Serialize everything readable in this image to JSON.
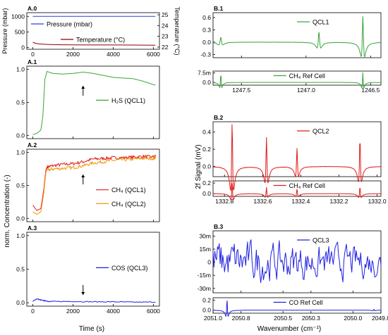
{
  "figure": {
    "left_ylabel": "norm. Concentration (-)",
    "left_xlabel": "Time (s)",
    "right_ylabel": "2f Signal (mV)",
    "right_xlabel": "Wavenumber (cm⁻¹)"
  },
  "chart_data": [
    {
      "id": "A0",
      "panel_label": "A.0",
      "type": "line",
      "ylabel_left": "Pressure (mbar)",
      "ylabel_right": "Temperature (°C)",
      "xlim": [
        -300,
        6300
      ],
      "ylim_left": [
        -60,
        1120
      ],
      "ylim_right": [
        21.8,
        25.2
      ],
      "xticks": [
        0,
        2000,
        4000,
        6000
      ],
      "xtick_labels": [
        "0",
        "2000",
        "4000",
        "6000"
      ],
      "yticks_left": [
        0,
        500,
        1000
      ],
      "ytick_labels_left": [
        "0",
        "500",
        "1000"
      ],
      "yticks_right": [
        22,
        23,
        24,
        25
      ],
      "ytick_labels_right": [
        "22",
        "23",
        "24",
        "25"
      ],
      "series": [
        {
          "name": "Pressure (mbar)",
          "axis": "left",
          "color": "#2f3fd6",
          "x": [
            0,
            6100
          ],
          "y": [
            1000,
            1000
          ]
        },
        {
          "name": "Temperature (°C)",
          "axis": "right",
          "color": "#8b0000",
          "x": [
            0,
            150,
            300,
            500,
            700,
            1000,
            1500,
            2000,
            3000,
            4000,
            5000,
            6100
          ],
          "y": [
            22.45,
            22.35,
            22.3,
            22.27,
            22.25,
            22.23,
            22.22,
            22.21,
            22.2,
            22.2,
            22.19,
            22.18
          ]
        }
      ]
    },
    {
      "id": "A1",
      "panel_label": "A.1",
      "type": "line",
      "xlim": [
        -300,
        6300
      ],
      "ylim": [
        -0.05,
        1.05
      ],
      "xticks": [
        0,
        2000,
        4000,
        6000
      ],
      "yticks": [
        0,
        0.5,
        1.0
      ],
      "ytick_labels": [
        "0.0",
        "0.5",
        "1.0"
      ],
      "arrow_x": 2500,
      "series": [
        {
          "name": "H₂S (QCL1)",
          "color": "#3aa43a",
          "x": [
            0,
            200,
            400,
            500,
            600,
            700,
            1000,
            1500,
            2000,
            2500,
            3000,
            3500,
            4000,
            4500,
            5000,
            5500,
            6000,
            6100
          ],
          "y": [
            0.01,
            0.03,
            0.08,
            0.3,
            0.85,
            0.97,
            0.94,
            0.93,
            0.94,
            0.96,
            0.94,
            0.91,
            0.88,
            0.87,
            0.86,
            0.82,
            0.77,
            0.76
          ]
        }
      ]
    },
    {
      "id": "A2",
      "panel_label": "A.2",
      "type": "line",
      "xlim": [
        -300,
        6300
      ],
      "ylim": [
        -0.05,
        1.05
      ],
      "xticks": [
        0,
        2000,
        4000,
        6000
      ],
      "yticks": [
        0,
        0.5,
        1.0
      ],
      "ytick_labels": [
        "0.0",
        "0.5",
        "1.0"
      ],
      "arrow_x": 2500,
      "series": [
        {
          "name": "CH₄ (QCL1)",
          "color": "#e01b1b",
          "x": [
            0,
            200,
            400,
            550,
            650,
            700,
            1000,
            1500,
            2000,
            2500,
            3000,
            3500,
            4000,
            4500,
            5000,
            5500,
            6000,
            6100
          ],
          "y": [
            0.2,
            0.12,
            0.15,
            0.45,
            0.74,
            0.78,
            0.8,
            0.82,
            0.83,
            0.86,
            0.9,
            0.91,
            0.92,
            0.92,
            0.93,
            0.94,
            0.93,
            0.94
          ]
        },
        {
          "name": "CH₄ (QCL2)",
          "color": "#f0960a",
          "x": [
            0,
            200,
            400,
            550,
            650,
            700,
            1000,
            1500,
            2000,
            2500,
            3000,
            3500,
            4000,
            4500,
            5000,
            5500,
            6000,
            6100
          ],
          "y": [
            0.1,
            0.06,
            0.1,
            0.4,
            0.7,
            0.73,
            0.75,
            0.76,
            0.77,
            0.8,
            0.84,
            0.86,
            0.88,
            0.89,
            0.9,
            0.91,
            0.91,
            0.93
          ]
        }
      ]
    },
    {
      "id": "A3",
      "panel_label": "A.3",
      "type": "line",
      "xlim": [
        -300,
        6300
      ],
      "ylim": [
        -0.05,
        1.05
      ],
      "xticks": [
        0,
        2000,
        4000,
        6000
      ],
      "xtick_labels": [
        "0",
        "2000",
        "4000",
        "6000"
      ],
      "yticks": [
        0,
        0.5,
        1.0
      ],
      "ytick_labels": [
        "0.0",
        "0.5",
        "1.0"
      ],
      "arrow_x": 2500,
      "series": [
        {
          "name": "COS (QCL3)",
          "color": "#2020e0",
          "x": [
            0,
            200,
            400,
            600,
            800,
            1000,
            2000,
            3000,
            4000,
            5000,
            6100
          ],
          "y": [
            0.02,
            0.06,
            0.04,
            0.03,
            0.02,
            0.02,
            0.02,
            0.015,
            0.015,
            0.01,
            0.01
          ]
        }
      ]
    },
    {
      "id": "B1",
      "panel_label": "B.1",
      "type": "line",
      "xlim": [
        1247.72,
        1246.42
      ],
      "x_reversed": true,
      "xticks": [
        1247.5,
        1247.0,
        1246.5
      ],
      "xtick_labels": [
        "1247.5",
        "1247.0",
        "1246.5"
      ],
      "main": {
        "ylim": [
          -0.38,
          0.72
        ],
        "yticks": [
          -0.3,
          0,
          0.3,
          0.6
        ],
        "ytick_labels": [
          "-0.3",
          "0.0",
          "0.3",
          "0.6"
        ],
        "series": [
          {
            "name": "QCL1",
            "color": "#3aa43a",
            "peaks": [
              {
                "x": 1247.66,
                "a": 0.12,
                "w": 0.012
              },
              {
                "x": 1246.9,
                "a": 0.25,
                "w": 0.011
              },
              {
                "x": 1246.56,
                "a": 0.63,
                "w": 0.01
              }
            ]
          }
        ]
      },
      "ref": {
        "ylim": [
          -0.0022,
          0.009
        ],
        "yticks": [
          0,
          0.0075
        ],
        "ytick_labels": [
          "0.0",
          "7.5m"
        ],
        "series": [
          {
            "name": "CH₄ Ref Cell",
            "color": "#3aa43a",
            "peaks": [
              {
                "x": 1247.66,
                "a": 0.0075,
                "w": 0.006
              },
              {
                "x": 1246.56,
                "a": 0.0078,
                "w": 0.006
              }
            ]
          }
        ]
      }
    },
    {
      "id": "B2",
      "panel_label": "B.2",
      "type": "line",
      "xlim": [
        1332.86,
        1331.98
      ],
      "x_reversed": true,
      "xticks": [
        1332.8,
        1332.6,
        1332.4,
        1332.2,
        1332.0
      ],
      "xtick_labels": [
        "1332.8",
        "1332.6",
        "1332.4",
        "1332.2",
        "1332.0"
      ],
      "main": {
        "ylim": [
          -0.12,
          0.52
        ],
        "yticks": [
          -0.0,
          0.2,
          0.4
        ],
        "ytick_labels": [
          "0.0",
          "0.2",
          "0.4"
        ],
        "series": [
          {
            "name": "QCL2",
            "color": "#e01b1b",
            "peaks": [
              {
                "x": 1332.76,
                "a": 0.5,
                "w": 0.006
              },
              {
                "x": 1332.58,
                "a": 0.34,
                "w": 0.006
              },
              {
                "x": 1332.42,
                "a": 0.21,
                "w": 0.006
              },
              {
                "x": 1332.09,
                "a": 0.32,
                "w": 0.006
              }
            ]
          }
        ]
      },
      "ref": {
        "ylim": [
          -0.05,
          0.24
        ],
        "yticks": [
          0,
          0.2
        ],
        "ytick_labels": [
          "0.0",
          "0.2"
        ],
        "series": [
          {
            "name": "CH₄ Ref Cell",
            "color": "#e01b1b",
            "peaks": [
              {
                "x": 1332.76,
                "a": 0.2,
                "w": 0.005
              },
              {
                "x": 1332.58,
                "a": 0.12,
                "w": 0.005
              },
              {
                "x": 1332.42,
                "a": 0.1,
                "w": 0.005
              },
              {
                "x": 1332.09,
                "a": 0.13,
                "w": 0.005
              }
            ]
          }
        ]
      }
    },
    {
      "id": "B3",
      "panel_label": "B.3",
      "type": "line",
      "xlim": [
        2051.0,
        2049.8
      ],
      "x_reversed": true,
      "xticks": [
        2051.0,
        2050.8,
        2050.5,
        2050.3,
        2050.0,
        2049.8
      ],
      "xtick_labels": [
        "2051.0",
        "2050.8",
        "2050.5",
        "2050.3",
        "2050.0",
        "2049.8"
      ],
      "main": {
        "ylim": [
          -0.035,
          0.036
        ],
        "yticks": [
          -0.03,
          -0.015,
          0,
          0.015,
          0.03
        ],
        "ytick_labels": [
          "-30m",
          "-15m",
          "0",
          "15m",
          "30m"
        ],
        "series": [
          {
            "name": "QCL3",
            "color": "#2020e0",
            "noise_amp": 0.011,
            "noise_decay": 0.35
          }
        ]
      },
      "ref": {
        "ylim": [
          -0.06,
          0.25
        ],
        "yticks": [
          0,
          0.2
        ],
        "ytick_labels": [
          "0.0",
          "0.2"
        ],
        "series": [
          {
            "name": "CO Ref Cell",
            "color": "#2020e0",
            "peaks": [
              {
                "x": 2050.9,
                "a": 0.22,
                "w": 0.006
              },
              {
                "x": 2049.85,
                "a": 0.02,
                "w": 0.006
              }
            ]
          }
        ]
      }
    }
  ]
}
